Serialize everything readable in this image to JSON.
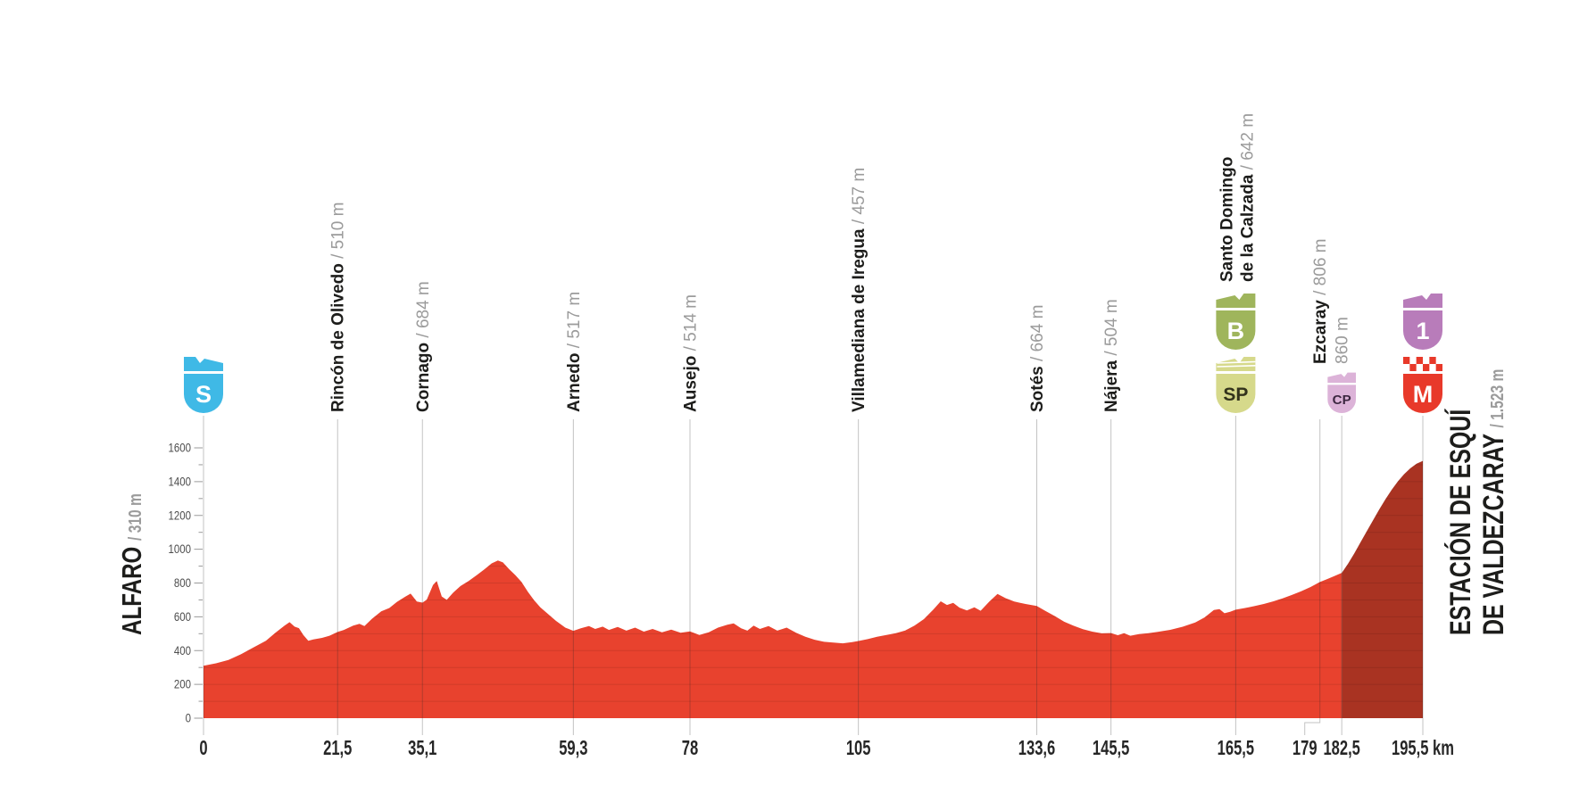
{
  "page": {
    "background": "#ffffff"
  },
  "start_label": {
    "name": "ALFARO",
    "alt": "/ 310 m"
  },
  "finish_label": {
    "line1": "ESTACIÓN DE ESQUÍ",
    "line2": "DE VALDEZCARAY",
    "alt": "/ 1.523 m"
  },
  "chart_data": {
    "type": "area",
    "x_unit": "km",
    "y_unit": "m",
    "x_range": [
      0,
      195.5
    ],
    "y_axis_ticks": [
      0,
      200,
      400,
      600,
      800,
      1000,
      1200,
      1400,
      1600
    ],
    "y_minor_step": 100,
    "grid": "inside-area-horizontal",
    "final_climb_start_km": 182.5,
    "colors": {
      "area": "#e8422e",
      "final_climb": "#a93322",
      "marker_line": "rgba(40,40,40,0.28)",
      "grid_line": "rgba(0,0,0,0.10)",
      "label_dark": "#1d1d1b",
      "label_gray": "#9b9b9b",
      "axis_text": "#262626",
      "y_axis_text": "#4d4d4d",
      "tick_dash": "#9a9a9a"
    },
    "badges": {
      "S": {
        "label": "S",
        "color": "#3fb9e6",
        "text_color": "#ffffff",
        "meaning": "start",
        "mirror": true
      },
      "B": {
        "label": "B",
        "color": "#9fb55c",
        "text_color": "#ffffff",
        "meaning": "feed-zone"
      },
      "SP": {
        "label": "SP",
        "color": "#d6d98b",
        "text_color": "#33331c",
        "meaning": "intermediate-sprint",
        "stripes": true
      },
      "CP": {
        "label": "CP",
        "color": "#dcb3d8",
        "text_color": "#3c2740",
        "meaning": "checkpoint",
        "small": true
      },
      "1": {
        "label": "1",
        "color": "#b87cba",
        "text_color": "#ffffff",
        "meaning": "category-1-climb"
      },
      "M": {
        "label": "M",
        "color": "#e8392a",
        "text_color": "#ffffff",
        "meaning": "finish",
        "checkered": true
      }
    },
    "waypoints": [
      {
        "km": 0,
        "tick": "0",
        "badges": [
          "S"
        ]
      },
      {
        "km": 21.5,
        "tick": "21,5",
        "name": "Rincón de Olivedo",
        "alt": "/ 510 m"
      },
      {
        "km": 35.1,
        "tick": "35,1",
        "name": "Cornago",
        "alt": "/ 684 m"
      },
      {
        "km": 59.3,
        "tick": "59,3",
        "name": "Arnedo",
        "alt": "/ 517 m"
      },
      {
        "km": 78,
        "tick": "78",
        "name": "Ausejo",
        "alt": "/ 514 m"
      },
      {
        "km": 105,
        "tick": "105",
        "name": "Villamediana de Iregua",
        "alt": "/ 457 m"
      },
      {
        "km": 133.6,
        "tick": "133,6",
        "name": "Sotés",
        "alt": "/ 664 m"
      },
      {
        "km": 145.5,
        "tick": "145,5",
        "name": "Nájera",
        "alt": "/ 504 m"
      },
      {
        "km": 165.5,
        "tick": "165,5",
        "name_lines": [
          "Santo Domingo",
          "de la Calzada"
        ],
        "alt": "/ 642 m",
        "badges": [
          "B",
          "SP"
        ]
      },
      {
        "km": 179,
        "tick": "179",
        "name": "Ezcaray",
        "alt": "/ 806 m",
        "label_y": 408,
        "tick_elbow": -17
      },
      {
        "km": 182.5,
        "tick": "182,5",
        "alt_only": "860 m",
        "badges": [
          "CP"
        ]
      },
      {
        "km": 195.5,
        "tick": "195,5 km",
        "badges": [
          "1",
          "M"
        ]
      }
    ],
    "elevation_points": [
      [
        0,
        310
      ],
      [
        2,
        325
      ],
      [
        4,
        345
      ],
      [
        6,
        378
      ],
      [
        8,
        418
      ],
      [
        10,
        458
      ],
      [
        11.5,
        505
      ],
      [
        13,
        548
      ],
      [
        13.8,
        568
      ],
      [
        14.6,
        542
      ],
      [
        15.3,
        533
      ],
      [
        16,
        492
      ],
      [
        16.8,
        458
      ],
      [
        17.6,
        466
      ],
      [
        19,
        475
      ],
      [
        20.2,
        488
      ],
      [
        21.5,
        510
      ],
      [
        22.5,
        522
      ],
      [
        24,
        548
      ],
      [
        25,
        558
      ],
      [
        25.8,
        545
      ],
      [
        27,
        588
      ],
      [
        28.5,
        632
      ],
      [
        29.8,
        652
      ],
      [
        31,
        688
      ],
      [
        32.3,
        718
      ],
      [
        33.2,
        737
      ],
      [
        34.2,
        690
      ],
      [
        35.1,
        684
      ],
      [
        35.8,
        702
      ],
      [
        36.8,
        788
      ],
      [
        37.4,
        812
      ],
      [
        38.2,
        720
      ],
      [
        39,
        700
      ],
      [
        40,
        742
      ],
      [
        41.2,
        782
      ],
      [
        42.5,
        812
      ],
      [
        43.8,
        846
      ],
      [
        45,
        880
      ],
      [
        46.2,
        916
      ],
      [
        47.2,
        933
      ],
      [
        48,
        922
      ],
      [
        49,
        882
      ],
      [
        50,
        846
      ],
      [
        51,
        806
      ],
      [
        52,
        748
      ],
      [
        53,
        698
      ],
      [
        54,
        656
      ],
      [
        55.2,
        618
      ],
      [
        56.5,
        576
      ],
      [
        58,
        536
      ],
      [
        59.3,
        517
      ],
      [
        60.5,
        532
      ],
      [
        61.8,
        545
      ],
      [
        62.8,
        528
      ],
      [
        64,
        542
      ],
      [
        65,
        522
      ],
      [
        66.4,
        540
      ],
      [
        67.8,
        518
      ],
      [
        69.2,
        536
      ],
      [
        70.6,
        512
      ],
      [
        72,
        528
      ],
      [
        73.5,
        508
      ],
      [
        75,
        524
      ],
      [
        76.5,
        506
      ],
      [
        78,
        514
      ],
      [
        79.5,
        492
      ],
      [
        81,
        508
      ],
      [
        82.5,
        536
      ],
      [
        84,
        553
      ],
      [
        85,
        561
      ],
      [
        86.2,
        532
      ],
      [
        87.2,
        518
      ],
      [
        88.2,
        548
      ],
      [
        89.2,
        528
      ],
      [
        90.6,
        545
      ],
      [
        92,
        518
      ],
      [
        93.5,
        536
      ],
      [
        95,
        506
      ],
      [
        96.5,
        482
      ],
      [
        98,
        464
      ],
      [
        99.5,
        452
      ],
      [
        101,
        447
      ],
      [
        102.5,
        443
      ],
      [
        104,
        450
      ],
      [
        105,
        457
      ],
      [
        106.5,
        468
      ],
      [
        108,
        482
      ],
      [
        109.5,
        492
      ],
      [
        111,
        503
      ],
      [
        112.5,
        519
      ],
      [
        114,
        548
      ],
      [
        115.5,
        586
      ],
      [
        117,
        642
      ],
      [
        118.2,
        692
      ],
      [
        119.2,
        670
      ],
      [
        120.2,
        682
      ],
      [
        121.2,
        654
      ],
      [
        122.4,
        638
      ],
      [
        123.6,
        656
      ],
      [
        124.6,
        636
      ],
      [
        126,
        690
      ],
      [
        127.3,
        735
      ],
      [
        128.6,
        710
      ],
      [
        130,
        690
      ],
      [
        131.8,
        676
      ],
      [
        133.6,
        664
      ],
      [
        135,
        634
      ],
      [
        136.5,
        604
      ],
      [
        138,
        571
      ],
      [
        139.5,
        547
      ],
      [
        141,
        527
      ],
      [
        142.5,
        512
      ],
      [
        144,
        502
      ],
      [
        145.5,
        504
      ],
      [
        146.6,
        491
      ],
      [
        147.6,
        503
      ],
      [
        148.6,
        488
      ],
      [
        150,
        498
      ],
      [
        151.5,
        503
      ],
      [
        153,
        511
      ],
      [
        155,
        523
      ],
      [
        157,
        541
      ],
      [
        159,
        566
      ],
      [
        160.5,
        596
      ],
      [
        162,
        640
      ],
      [
        162.9,
        646
      ],
      [
        163.7,
        621
      ],
      [
        164.6,
        630
      ],
      [
        165.5,
        642
      ],
      [
        167,
        652
      ],
      [
        168.5,
        663
      ],
      [
        170,
        676
      ],
      [
        171.5,
        691
      ],
      [
        173,
        709
      ],
      [
        174.5,
        729
      ],
      [
        176,
        751
      ],
      [
        177.5,
        776
      ],
      [
        179,
        806
      ],
      [
        180.2,
        824
      ],
      [
        181.3,
        841
      ],
      [
        182.5,
        860
      ],
      [
        183.5,
        914
      ],
      [
        184.5,
        974
      ],
      [
        185.5,
        1040
      ],
      [
        186.5,
        1106
      ],
      [
        187.5,
        1170
      ],
      [
        188.5,
        1235
      ],
      [
        189.5,
        1296
      ],
      [
        190.5,
        1352
      ],
      [
        191.5,
        1402
      ],
      [
        192.5,
        1444
      ],
      [
        193.5,
        1479
      ],
      [
        194.5,
        1506
      ],
      [
        195.5,
        1523
      ]
    ]
  }
}
